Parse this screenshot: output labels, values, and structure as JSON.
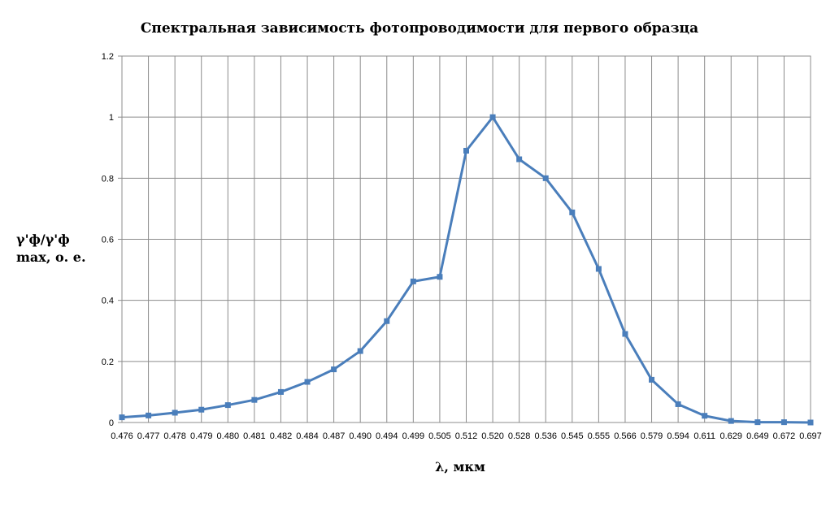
{
  "chart_data": {
    "type": "line",
    "title": "Спектральная зависимость фотопроводимости для первого образца",
    "xlabel": "λ, мкм",
    "ylabel_lines": [
      "γ'ф/γ'ф",
      "max, о. е."
    ],
    "categories": [
      "0.476",
      "0.477",
      "0.478",
      "0.479",
      "0.480",
      "0.481",
      "0.482",
      "0.484",
      "0.487",
      "0.490",
      "0.494",
      "0.499",
      "0.505",
      "0.512",
      "0.520",
      "0.528",
      "0.536",
      "0.545",
      "0.555",
      "0.566",
      "0.579",
      "0.594",
      "0.611",
      "0.629",
      "0.649",
      "0.672",
      "0.697"
    ],
    "series": [
      {
        "values": [
          0.017,
          0.023,
          0.032,
          0.042,
          0.057,
          0.074,
          0.1,
          0.133,
          0.174,
          0.234,
          0.332,
          0.462,
          0.477,
          0.89,
          1.0,
          0.862,
          0.8,
          0.688,
          0.503,
          0.29,
          0.14,
          0.06,
          0.022,
          0.005,
          0.001,
          0.001,
          0.0
        ],
        "color": "#4a7ebb"
      }
    ],
    "yticks": [
      "0",
      "0.2",
      "0.4",
      "0.6",
      "0.8",
      "1",
      "1.2"
    ],
    "ylim": [
      0,
      1.2
    ],
    "grid": true,
    "legend": "none"
  }
}
